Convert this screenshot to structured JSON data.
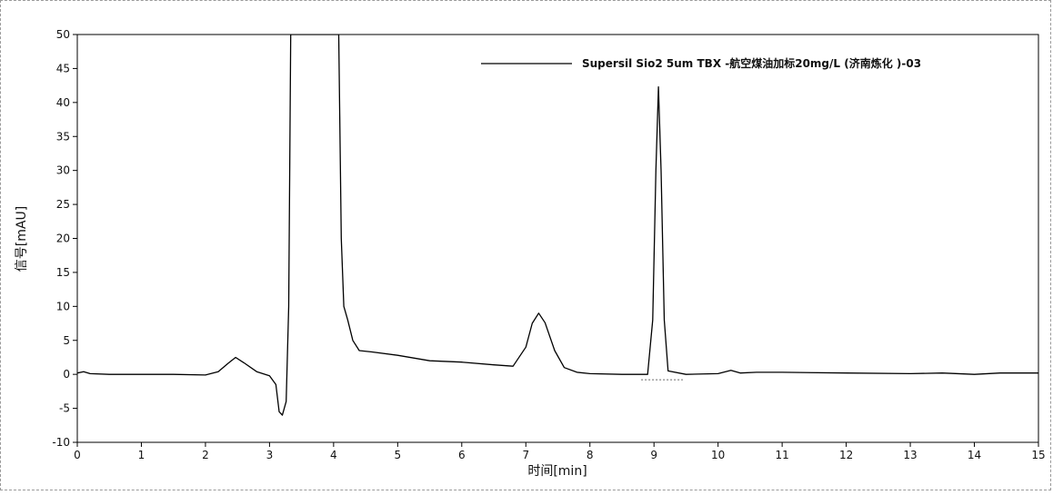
{
  "chart_data": {
    "type": "line",
    "xlabel": "时间[min]",
    "ylabel": "信号[mAU]",
    "xlim": [
      0,
      15
    ],
    "ylim": [
      -10,
      50
    ],
    "x_ticks": [
      0,
      1,
      2,
      3,
      4,
      5,
      6,
      7,
      8,
      9,
      10,
      11,
      12,
      13,
      14,
      15
    ],
    "y_ticks": [
      -10,
      -5,
      0,
      5,
      10,
      15,
      20,
      25,
      30,
      35,
      40,
      45,
      50
    ],
    "grid": false,
    "legend_position": "top-right",
    "series": [
      {
        "name": "Supersil Sio2 5um TBX -航空煤油加标20mg/L (济南炼化 )-03",
        "color": "#000000",
        "points": [
          [
            0.0,
            0.2
          ],
          [
            0.1,
            0.4
          ],
          [
            0.2,
            0.1
          ],
          [
            0.5,
            0.0
          ],
          [
            1.0,
            0.0
          ],
          [
            1.5,
            0.0
          ],
          [
            2.0,
            -0.1
          ],
          [
            2.2,
            0.4
          ],
          [
            2.35,
            1.6
          ],
          [
            2.47,
            2.5
          ],
          [
            2.6,
            1.7
          ],
          [
            2.8,
            0.4
          ],
          [
            3.0,
            -0.2
          ],
          [
            3.1,
            -1.5
          ],
          [
            3.15,
            -5.5
          ],
          [
            3.2,
            -6.0
          ],
          [
            3.26,
            -4.0
          ],
          [
            3.3,
            10.0
          ],
          [
            3.33,
            50.0
          ],
          [
            4.08,
            50.0
          ],
          [
            4.12,
            20.0
          ],
          [
            4.16,
            10.0
          ],
          [
            4.22,
            8.0
          ],
          [
            4.3,
            5.0
          ],
          [
            4.4,
            3.5
          ],
          [
            4.6,
            3.3
          ],
          [
            5.0,
            2.8
          ],
          [
            5.5,
            2.0
          ],
          [
            6.0,
            1.8
          ],
          [
            6.5,
            1.4
          ],
          [
            6.8,
            1.2
          ],
          [
            7.0,
            4.0
          ],
          [
            7.1,
            7.5
          ],
          [
            7.2,
            9.0
          ],
          [
            7.3,
            7.6
          ],
          [
            7.45,
            3.5
          ],
          [
            7.6,
            1.0
          ],
          [
            7.8,
            0.3
          ],
          [
            8.0,
            0.1
          ],
          [
            8.5,
            0.0
          ],
          [
            8.9,
            0.0
          ],
          [
            8.98,
            8.0
          ],
          [
            9.03,
            30.0
          ],
          [
            9.07,
            42.3
          ],
          [
            9.11,
            30.0
          ],
          [
            9.16,
            8.0
          ],
          [
            9.22,
            0.5
          ],
          [
            9.5,
            0.0
          ],
          [
            10.0,
            0.1
          ],
          [
            10.2,
            0.6
          ],
          [
            10.35,
            0.2
          ],
          [
            10.6,
            0.3
          ],
          [
            11.0,
            0.3
          ],
          [
            12.0,
            0.2
          ],
          [
            13.0,
            0.1
          ],
          [
            13.5,
            0.2
          ],
          [
            14.0,
            0.0
          ],
          [
            14.4,
            0.2
          ],
          [
            15.0,
            0.2
          ]
        ]
      }
    ],
    "annotations": [
      {
        "type": "baseline",
        "x_start": 8.8,
        "x_end": 9.45,
        "y": -0.8
      }
    ]
  }
}
